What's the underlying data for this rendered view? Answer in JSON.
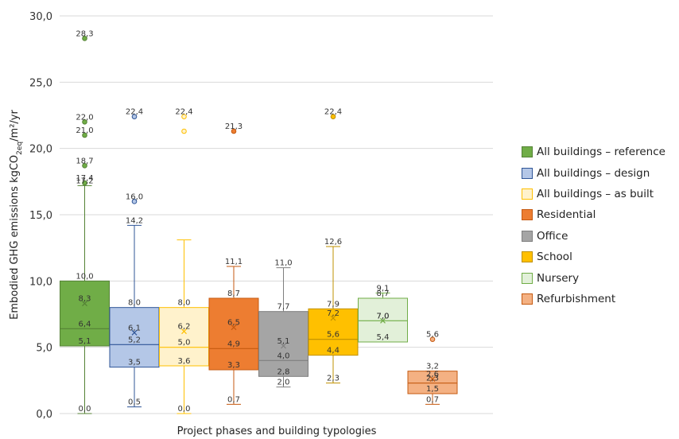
{
  "chart_data": {
    "type": "box",
    "xlabel": "Project phases and building typologies",
    "ylabel_parts": [
      "Embodied GHG emissions kgCO",
      "2eq",
      "/m²/yr"
    ],
    "ylim": [
      0,
      30
    ],
    "yticks": [
      "0,0",
      "5,0",
      "10,0",
      "15,0",
      "20,0",
      "25,0",
      "30,0"
    ],
    "grid": true,
    "legend_position": "right",
    "series": [
      {
        "name": "All buildings – reference",
        "fill": "#70ad47",
        "stroke": "#548235",
        "min": 0.0,
        "q1": 5.1,
        "median": 6.4,
        "mean": 8.3,
        "q3": 10.0,
        "max": 17.2,
        "outliers": [
          17.4,
          18.7,
          21.0,
          22.0,
          28.3
        ],
        "labels": [
          "0,0",
          "5,1",
          "6,4",
          "8,3",
          "10,0",
          "17,2",
          "17,4",
          "18,7",
          "21,0",
          "22,0",
          "28,3"
        ]
      },
      {
        "name": "All buildings – design",
        "fill": "#b4c7e7",
        "stroke": "#2f5597",
        "min": 0.5,
        "q1": 3.5,
        "median": 5.2,
        "mean": 6.1,
        "q3": 8.0,
        "max": 14.2,
        "outliers": [
          16.0,
          22.4
        ],
        "labels": [
          "0,5",
          "3,5",
          "5,2",
          "6,1",
          "8,0",
          "14,2",
          "16,0",
          "22,4"
        ]
      },
      {
        "name": "All buildings – as built",
        "fill": "#fff2cc",
        "stroke": "#ffc000",
        "min": 0.0,
        "q1": 3.6,
        "median": 5.0,
        "mean": 6.2,
        "q3": 8.0,
        "max": 13.1,
        "outliers": [
          21.3,
          22.4
        ],
        "labels": [
          "0,0",
          "3,6",
          "5,0",
          "6,2",
          "8,0",
          "22,4"
        ]
      },
      {
        "name": "Residential",
        "fill": "#ed7d31",
        "stroke": "#c55a11",
        "min": 0.7,
        "q1": 3.3,
        "median": 4.9,
        "mean": 6.5,
        "q3": 8.7,
        "max": 11.1,
        "outliers": [
          21.3
        ],
        "labels": [
          "0,7",
          "3,3",
          "4,9",
          "6,5",
          "8,7",
          "11,1",
          "21,3"
        ]
      },
      {
        "name": "Office",
        "fill": "#a5a5a5",
        "stroke": "#7f7f7f",
        "min": 2.0,
        "q1": 2.8,
        "median": 4.0,
        "mean": 5.1,
        "q3": 7.7,
        "max": 11.0,
        "outliers": [],
        "labels": [
          "2,0",
          "2,8",
          "4,0",
          "5,1",
          "7,7",
          "11,0"
        ]
      },
      {
        "name": "School",
        "fill": "#ffc000",
        "stroke": "#bf9000",
        "min": 2.3,
        "q1": 4.4,
        "median": 5.6,
        "mean": 7.2,
        "q3": 7.9,
        "max": 12.6,
        "outliers": [
          22.4
        ],
        "labels": [
          "2,3",
          "4,4",
          "5,6",
          "7,2",
          "7,9",
          "12,6",
          "22,4"
        ]
      },
      {
        "name": "Nursery",
        "fill": "#e2f0d9",
        "stroke": "#70ad47",
        "min": 5.4,
        "q1": 5.4,
        "median": 7.0,
        "mean": 7.0,
        "q3": 8.7,
        "max": 9.1,
        "outliers": [],
        "labels": [
          "5,4",
          "7,0",
          "7,0",
          "8,7",
          "9,1"
        ]
      },
      {
        "name": "Refurbishment",
        "fill": "#f4b183",
        "stroke": "#c55a11",
        "min": 0.7,
        "q1": 1.5,
        "median": 2.3,
        "mean": 2.6,
        "q3": 3.2,
        "max": 3.2,
        "outliers": [
          5.6
        ],
        "labels": [
          "0,7",
          "1,5",
          "2,3",
          "2,6",
          "3,2",
          "5,6"
        ]
      }
    ]
  }
}
